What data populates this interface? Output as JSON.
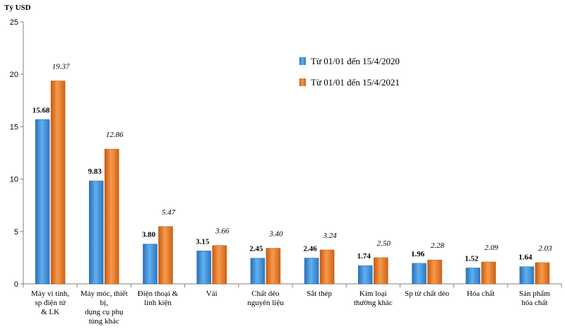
{
  "chart_data": {
    "type": "bar",
    "ylabel": "Tỷ USD",
    "ylim": [
      0,
      25
    ],
    "yticks": [
      0,
      5,
      10,
      15,
      20,
      25
    ],
    "categories": [
      [
        "Máy vi tính,",
        "sp điện tử",
        "& LK"
      ],
      [
        "Máy móc, thiết",
        "bị,",
        "dụng cụ phụ",
        "tùng khác"
      ],
      [
        "Điện thoại &",
        "linh kiện"
      ],
      [
        "Vải"
      ],
      [
        "Chất dẻo",
        "nguyên liệu"
      ],
      [
        "Sắt thép"
      ],
      [
        "Kim loại",
        "thường khác"
      ],
      [
        "Sp từ chất dẻo"
      ],
      [
        "Hóa chất"
      ],
      [
        "Sản phẩm",
        "hóa chất"
      ]
    ],
    "series": [
      {
        "name": "Từ 01/01 đến 15/4/2020",
        "color": "#3d8fd6",
        "values": [
          15.68,
          9.83,
          3.8,
          3.15,
          2.45,
          2.46,
          1.74,
          1.96,
          1.52,
          1.64
        ],
        "labels": [
          "15.68",
          "9.83",
          "3.80",
          "3.15",
          "2.45",
          "2.46",
          "1.74",
          "1.96",
          "1.52",
          "1.64"
        ]
      },
      {
        "name": "Từ 01/01 đến 15/4/2021",
        "color": "#e8731e",
        "values": [
          19.37,
          12.86,
          5.47,
          3.66,
          3.4,
          3.24,
          2.5,
          2.28,
          2.09,
          2.03
        ],
        "labels": [
          "19.37",
          "12.86",
          "5.47",
          "3.66",
          "3.40",
          "3.24",
          "2.50",
          "2.28",
          "2.09",
          "2.03"
        ]
      }
    ],
    "legend": "top-right, inside plot"
  }
}
